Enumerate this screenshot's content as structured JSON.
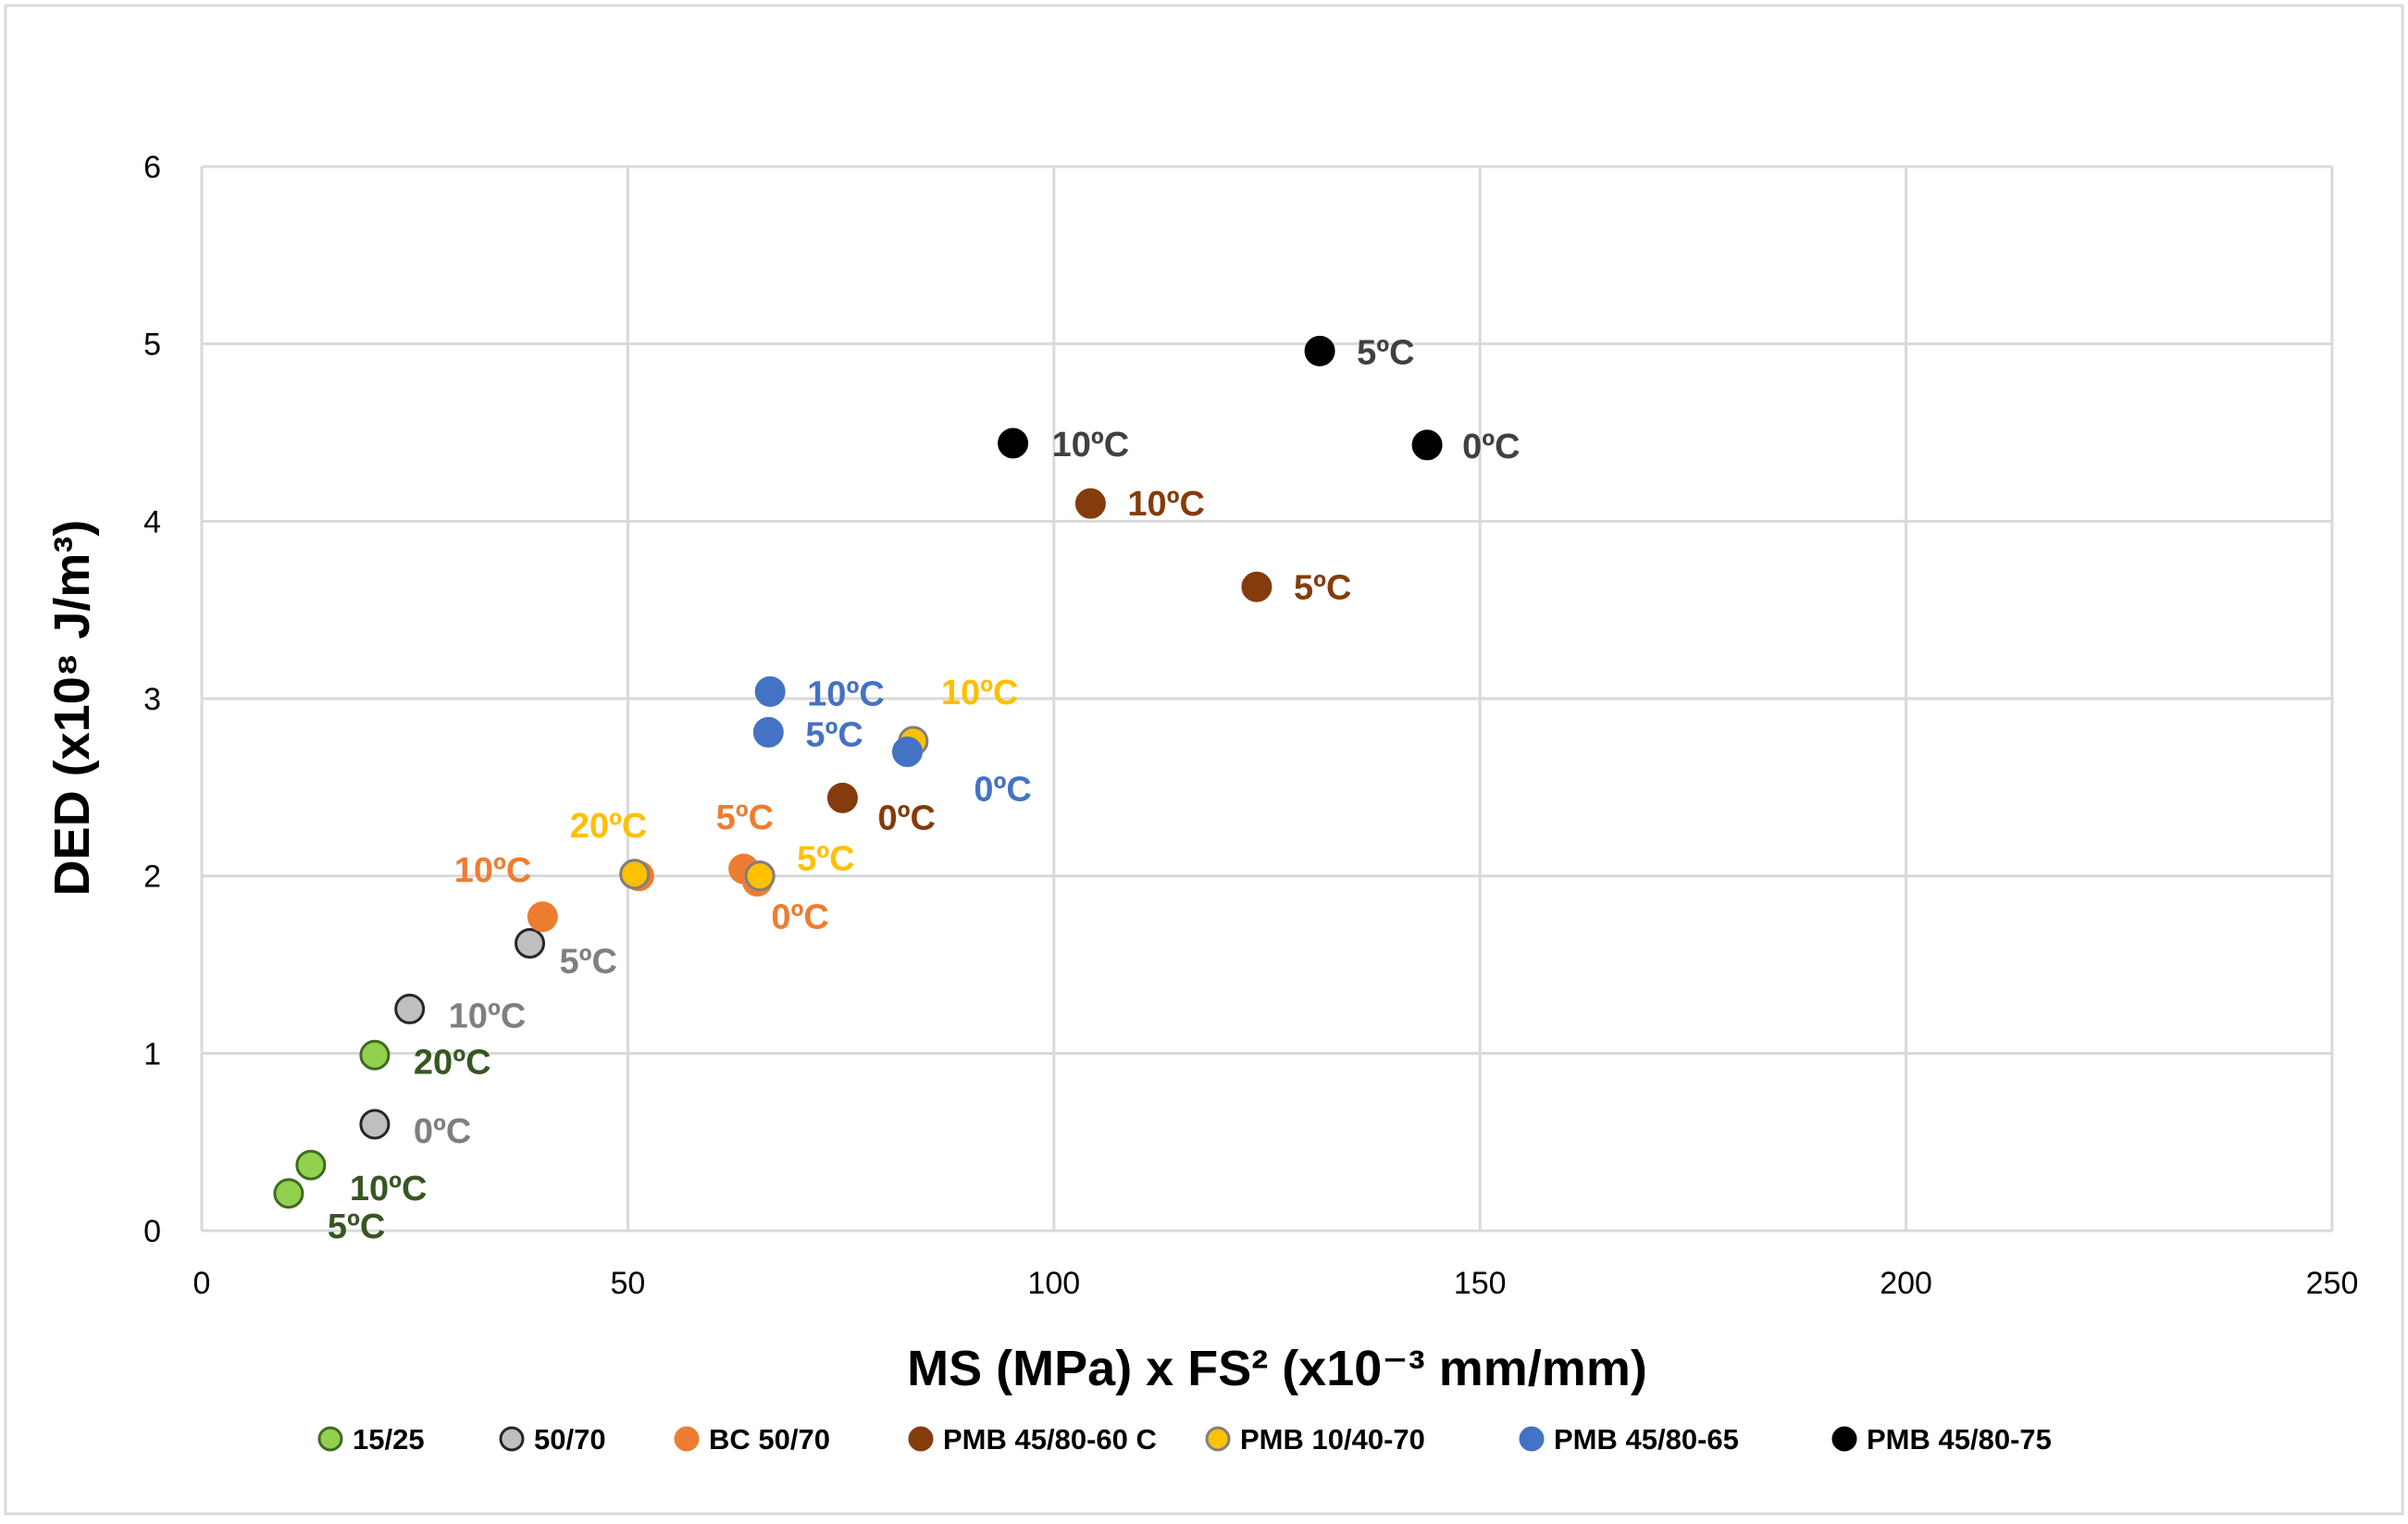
{
  "chart_data": {
    "type": "scatter",
    "title": "",
    "xlabel": "MS (MPa) x FS² (x10⁻³ mm/mm)",
    "ylabel": "DED (x10⁸ J/m³)",
    "xlim": [
      0,
      250
    ],
    "ylim": [
      0,
      6
    ],
    "x_ticks": [
      0,
      50,
      100,
      150,
      200,
      250
    ],
    "y_ticks": [
      0,
      1,
      2,
      3,
      4,
      5,
      6
    ],
    "x_tick_labels": [
      "0",
      "50",
      "100",
      "150",
      "200",
      "250"
    ],
    "y_tick_labels": [
      "0",
      "1",
      "2",
      "3",
      "4",
      "5",
      "6"
    ],
    "grid": true,
    "legend_position": "bottom",
    "series": [
      {
        "name": "15/25",
        "color": "#92d050",
        "edge": "#3f6b1f",
        "label_color": "#375623",
        "points": [
          {
            "x": 10.2,
            "y": 0.21,
            "label": "5ºC"
          },
          {
            "x": 12.8,
            "y": 0.37,
            "label": "10ºC"
          },
          {
            "x": 20.3,
            "y": 0.99,
            "label": "20ºC"
          }
        ]
      },
      {
        "name": "50/70",
        "color": "#bfbfbf",
        "edge": "#262626",
        "label_color": "#7f7f7f",
        "points": [
          {
            "x": 20.3,
            "y": 0.6,
            "label": "0ºC"
          },
          {
            "x": 24.4,
            "y": 1.25,
            "label": "10ºC"
          },
          {
            "x": 38.5,
            "y": 1.62,
            "label": "5ºC"
          },
          {
            "x": 50.8,
            "y": 2.01,
            "label": ""
          },
          {
            "x": 65.5,
            "y": 2.0,
            "label": ""
          }
        ]
      },
      {
        "name": "BC 50/70",
        "color": "#ed7d31",
        "edge": "#ed7d31",
        "label_color": "#ed7d31",
        "points": [
          {
            "x": 40.0,
            "y": 1.77,
            "label": "10ºC"
          },
          {
            "x": 51.3,
            "y": 2.0,
            "label": ""
          },
          {
            "x": 63.6,
            "y": 2.04,
            "label": "5ºC"
          },
          {
            "x": 65.2,
            "y": 1.97,
            "label": "0ºC"
          }
        ]
      },
      {
        "name": "PMB 45/80-60 C",
        "color": "#843c0c",
        "edge": "#843c0c",
        "label_color": "#843c0c",
        "points": [
          {
            "x": 75.2,
            "y": 2.44,
            "label": "0ºC"
          },
          {
            "x": 104.3,
            "y": 4.1,
            "label": "10ºC"
          },
          {
            "x": 123.8,
            "y": 3.63,
            "label": "5ºC"
          }
        ]
      },
      {
        "name": "PMB 10/40-70",
        "color": "#ffc000",
        "edge": "#7f7f7f",
        "label_color": "#ffc000",
        "points": [
          {
            "x": 50.8,
            "y": 2.01,
            "label": "20ºC"
          },
          {
            "x": 65.5,
            "y": 2.0,
            "label": "5ºC"
          },
          {
            "x": 83.5,
            "y": 2.76,
            "label": "10ºC"
          }
        ]
      },
      {
        "name": "PMB 45/80-65",
        "color": "#4472c4",
        "edge": "#4472c4",
        "label_color": "#4472c4",
        "points": [
          {
            "x": 66.7,
            "y": 3.04,
            "label": "10ºC"
          },
          {
            "x": 66.5,
            "y": 2.81,
            "label": "5ºC"
          },
          {
            "x": 82.8,
            "y": 2.7,
            "label": "0ºC"
          }
        ]
      },
      {
        "name": "PMB 45/80-75",
        "color": "#000000",
        "edge": "#000000",
        "label_color": "#404040",
        "points": [
          {
            "x": 95.2,
            "y": 4.44,
            "label": "10ºC"
          },
          {
            "x": 131.2,
            "y": 4.96,
            "label": "5ºC"
          },
          {
            "x": 143.8,
            "y": 4.43,
            "label": "0ºC"
          }
        ]
      }
    ]
  }
}
